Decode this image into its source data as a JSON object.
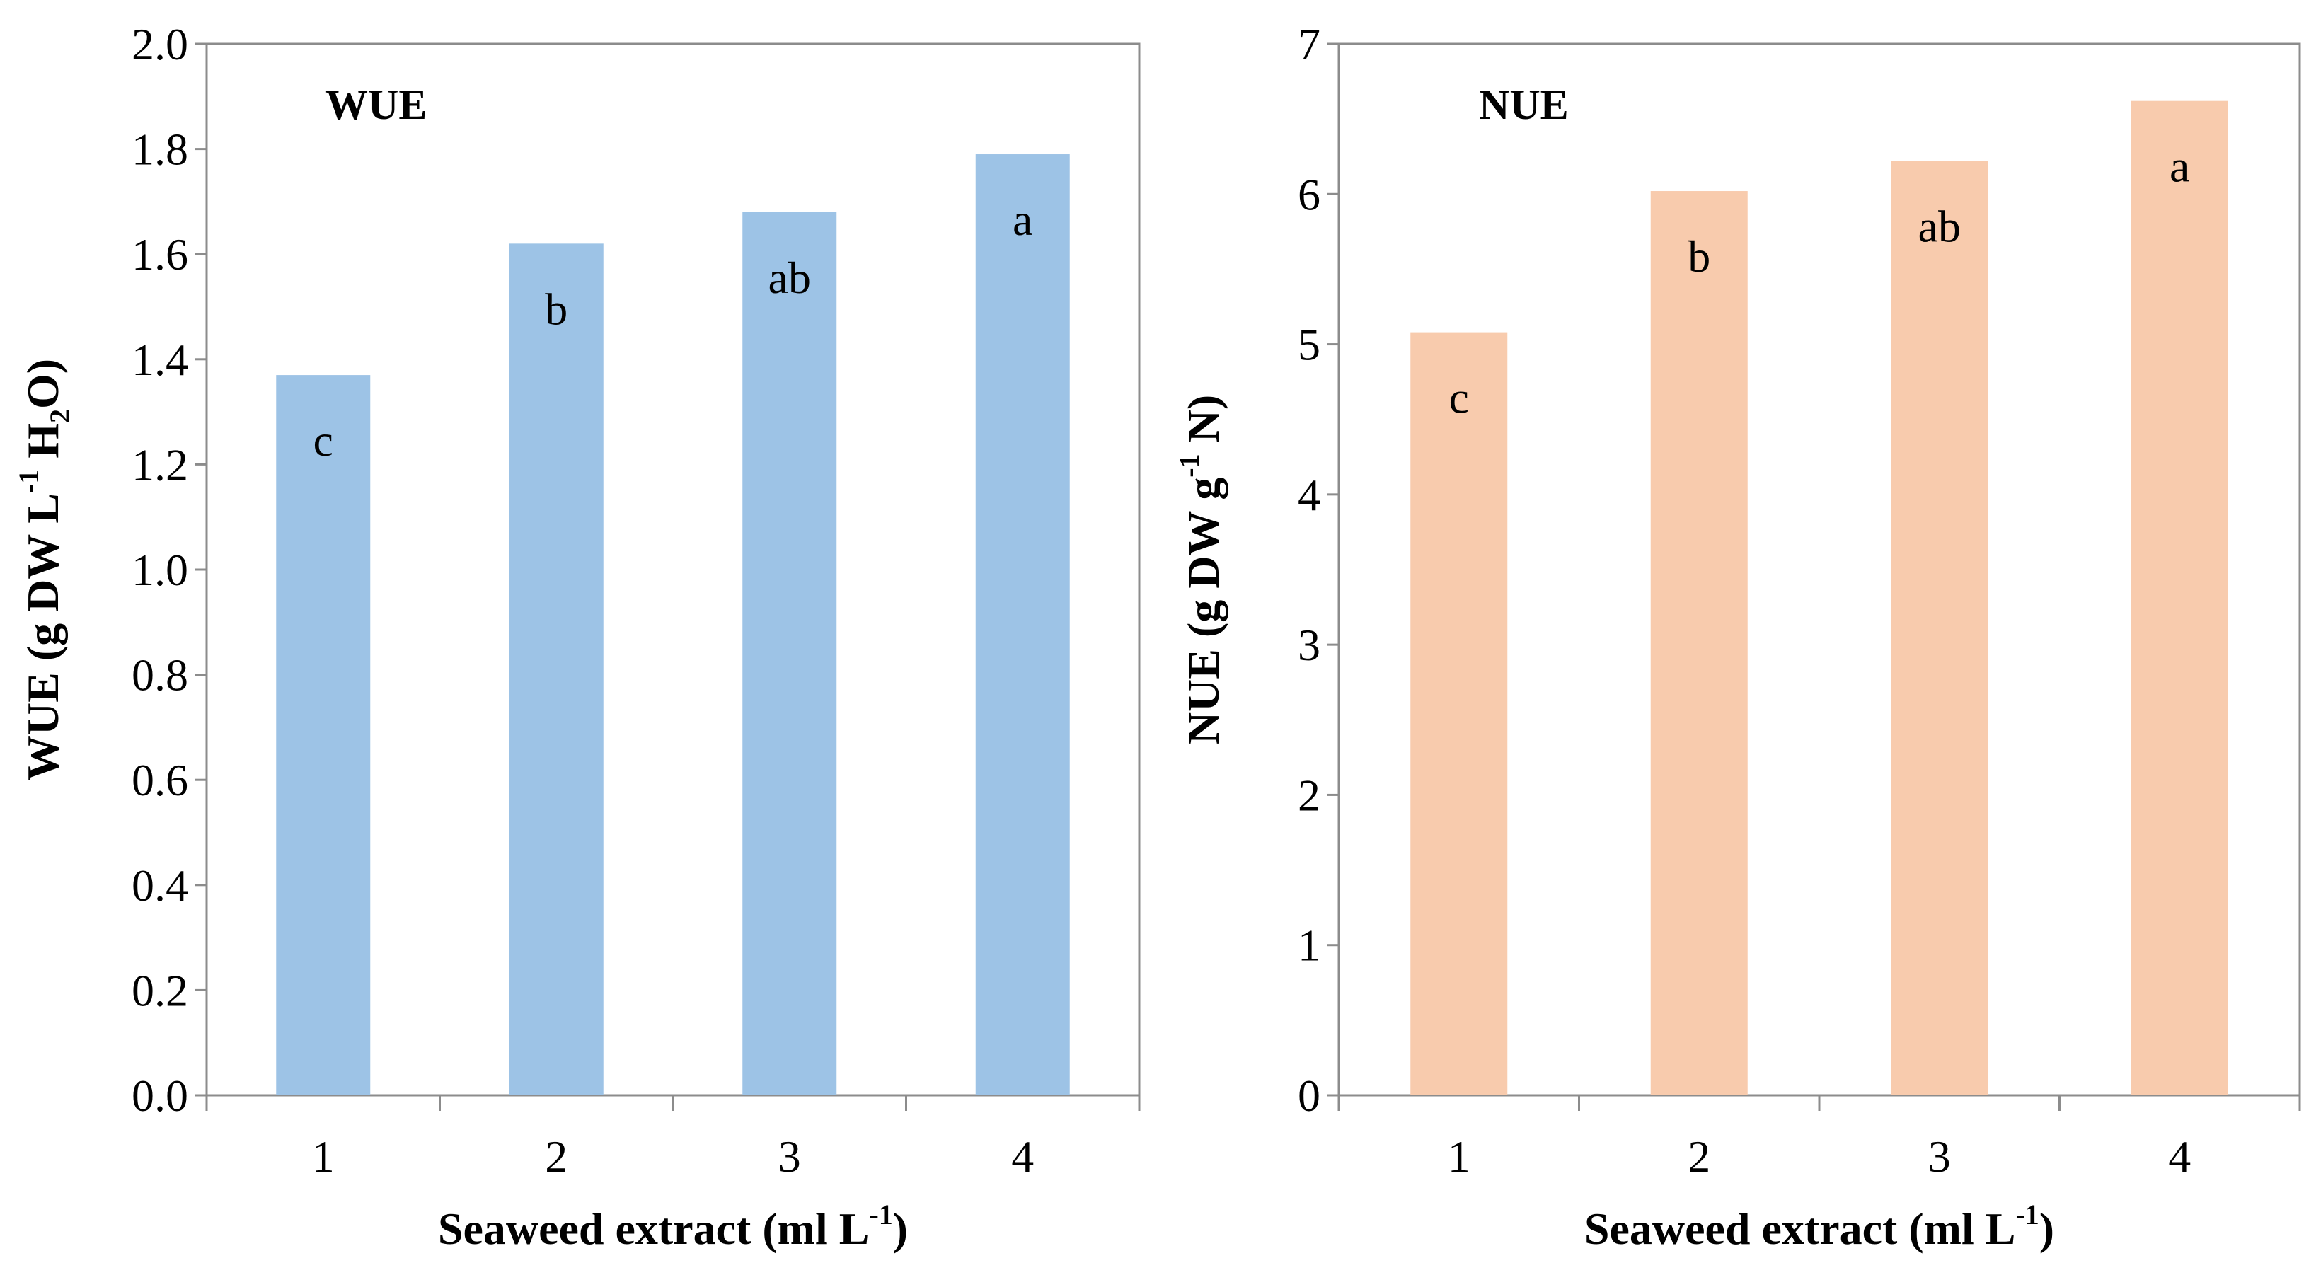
{
  "chart_data": [
    {
      "type": "bar",
      "title": "WUE",
      "categories": [
        "1",
        "2",
        "3",
        "4"
      ],
      "values": [
        1.37,
        1.62,
        1.68,
        1.79
      ],
      "bar_labels": [
        "c",
        "b",
        "ab",
        "a"
      ],
      "xlabel": {
        "text": "Seaweed extract (ml L",
        "sup": "-1",
        "close": ")"
      },
      "ylabel": {
        "text": "WUE (g DW L",
        "sup": "-1",
        "mid": " H",
        "sub": "2",
        "close": "O)"
      },
      "ylim": [
        0,
        2.0
      ],
      "yticks": [
        "0.0",
        "0.2",
        "0.4",
        "0.6",
        "0.8",
        "1.0",
        "1.2",
        "1.4",
        "1.6",
        "1.8",
        "2.0"
      ],
      "bar_color": "#9DC3E6",
      "grid": false
    },
    {
      "type": "bar",
      "title": "NUE",
      "categories": [
        "1",
        "2",
        "3",
        "4"
      ],
      "values": [
        5.08,
        6.02,
        6.22,
        6.62
      ],
      "bar_labels": [
        "c",
        "b",
        "ab",
        "a"
      ],
      "xlabel": {
        "text": "Seaweed extract (ml L",
        "sup": "-1",
        "close": ")"
      },
      "ylabel": {
        "text": "NUE (g DW g",
        "sup": "-1",
        "mid": " N)",
        "sub": "",
        "close": ""
      },
      "ylim": [
        0,
        7
      ],
      "yticks": [
        "0",
        "1",
        "2",
        "3",
        "4",
        "5",
        "6",
        "7"
      ],
      "bar_color": "#F8CBAD",
      "grid": false
    }
  ]
}
